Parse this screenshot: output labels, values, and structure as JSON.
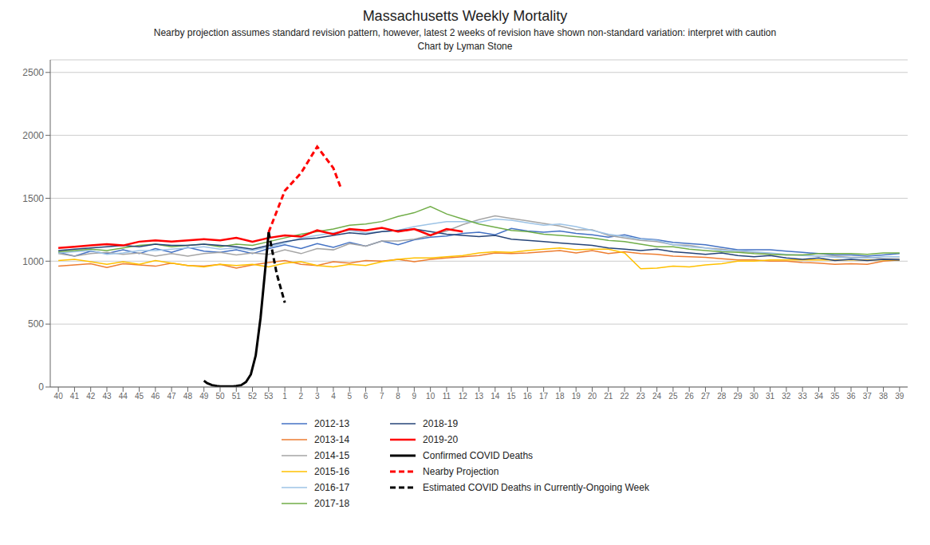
{
  "chart_data": {
    "type": "line",
    "title": "Massachusetts Weekly Mortality",
    "subtitle": [
      "Nearby projection assumes standard revision pattern, however, latest 2 weeks of revision have shown non-standard variation: interpret with caution",
      "Chart by Lyman Stone"
    ],
    "categories": [
      "40",
      "41",
      "42",
      "43",
      "44",
      "45",
      "46",
      "47",
      "48",
      "49",
      "50",
      "51",
      "52",
      "53",
      "1",
      "2",
      "3",
      "4",
      "5",
      "6",
      "7",
      "8",
      "9",
      "10",
      "11",
      "12",
      "13",
      "14",
      "15",
      "16",
      "17",
      "18",
      "19",
      "20",
      "21",
      "22",
      "23",
      "24",
      "25",
      "26",
      "27",
      "28",
      "29",
      "30",
      "31",
      "32",
      "33",
      "34",
      "35",
      "36",
      "37",
      "38",
      "39"
    ],
    "xlim": [
      -0.5,
      52.5
    ],
    "ylim": [
      0,
      2600
    ],
    "yticks": [
      0,
      500,
      1000,
      1500,
      2000,
      2500
    ],
    "grid": true,
    "legend": "bottom",
    "series": [
      {
        "name": "2012-13",
        "color": "#4472C4",
        "line_style": "solid",
        "values": [
          1070,
          1040,
          1080,
          1060,
          1090,
          1060,
          1100,
          1070,
          1110,
          1080,
          1070,
          1090,
          1060,
          1100,
          1130,
          1100,
          1140,
          1110,
          1150,
          1120,
          1160,
          1130,
          1170,
          1190,
          1200,
          1220,
          1230,
          1210,
          1260,
          1240,
          1230,
          1240,
          1220,
          1210,
          1190,
          1210,
          1180,
          1170,
          1150,
          1140,
          1130,
          1110,
          1090,
          1090,
          1090,
          1080,
          1070,
          1060,
          1050,
          1050,
          1040,
          1050,
          1060
        ]
      },
      {
        "name": "2013-14",
        "color": "#ED7D31",
        "line_style": "solid",
        "values": [
          960,
          970,
          980,
          950,
          980,
          970,
          960,
          985,
          965,
          960,
          975,
          945,
          970,
          990,
          1005,
          975,
          965,
          995,
          985,
          1005,
          1000,
          1015,
          995,
          1015,
          1025,
          1035,
          1045,
          1065,
          1060,
          1065,
          1075,
          1085,
          1065,
          1085,
          1060,
          1075,
          1060,
          1055,
          1040,
          1035,
          1030,
          1020,
          1010,
          1010,
          1000,
          1000,
          990,
          985,
          975,
          980,
          975,
          1000,
          1010
        ]
      },
      {
        "name": "2014-15",
        "color": "#A5A5A5",
        "line_style": "solid",
        "values": [
          1060,
          1040,
          1060,
          1070,
          1055,
          1065,
          1040,
          1060,
          1040,
          1060,
          1070,
          1050,
          1065,
          1055,
          1090,
          1060,
          1100,
          1090,
          1140,
          1120,
          1160,
          1160,
          1175,
          1205,
          1240,
          1290,
          1330,
          1360,
          1340,
          1320,
          1300,
          1280,
          1250,
          1250,
          1205,
          1185,
          1165,
          1155,
          1130,
          1125,
          1105,
          1095,
          1080,
          1070,
          1060,
          1050,
          1050,
          1040,
          1040,
          1030,
          1030,
          1020,
          1020
        ]
      },
      {
        "name": "2015-16",
        "color": "#FFC000",
        "line_style": "solid",
        "values": [
          1005,
          1015,
          995,
          975,
          995,
          975,
          1005,
          985,
          965,
          955,
          975,
          965,
          975,
          955,
          985,
          995,
          965,
          955,
          975,
          965,
          995,
          1015,
          1025,
          1025,
          1035,
          1045,
          1065,
          1075,
          1070,
          1085,
          1095,
          1105,
          1090,
          1095,
          1095,
          1065,
          940,
          945,
          960,
          955,
          970,
          980,
          1000,
          1000,
          1010,
          1010,
          1010,
          1010,
          1010,
          1010,
          1010,
          1010,
          1010
        ]
      },
      {
        "name": "2016-17",
        "color": "#9DC3E6",
        "line_style": "solid",
        "values": [
          1065,
          1075,
          1085,
          1055,
          1065,
          1085,
          1085,
          1095,
          1105,
          1115,
          1095,
          1105,
          1085,
          1115,
          1145,
          1185,
          1205,
          1225,
          1245,
          1225,
          1235,
          1245,
          1275,
          1295,
          1315,
          1315,
          1310,
          1335,
          1325,
          1305,
          1285,
          1295,
          1275,
          1245,
          1215,
          1195,
          1175,
          1165,
          1130,
          1115,
          1105,
          1085,
          1085,
          1075,
          1065,
          1055,
          1045,
          1040,
          1030,
          1025,
          1025,
          1035,
          1035
        ]
      },
      {
        "name": "2017-18",
        "color": "#70AD47",
        "line_style": "solid",
        "values": [
          1075,
          1085,
          1095,
          1085,
          1105,
          1125,
          1135,
          1115,
          1125,
          1135,
          1115,
          1135,
          1125,
          1155,
          1185,
          1215,
          1235,
          1255,
          1285,
          1295,
          1315,
          1355,
          1385,
          1435,
          1375,
          1335,
          1295,
          1270,
          1245,
          1235,
          1215,
          1205,
          1195,
          1185,
          1165,
          1155,
          1135,
          1115,
          1115,
          1095,
          1085,
          1075,
          1070,
          1060,
          1055,
          1050,
          1050,
          1060,
          1060,
          1060,
          1055,
          1065,
          1065
        ]
      },
      {
        "name": "2018-19",
        "color": "#264478",
        "line_style": "solid",
        "values": [
          1085,
          1095,
          1105,
          1115,
          1125,
          1115,
          1135,
          1125,
          1125,
          1135,
          1125,
          1115,
          1095,
          1125,
          1155,
          1175,
          1185,
          1205,
          1225,
          1215,
          1235,
          1245,
          1255,
          1235,
          1215,
          1205,
          1195,
          1205,
          1175,
          1165,
          1155,
          1145,
          1135,
          1125,
          1105,
          1095,
          1085,
          1095,
          1075,
          1065,
          1055,
          1065,
          1045,
          1035,
          1045,
          1025,
          1015,
          1025,
          1005,
          1015,
          1005,
          1015,
          1010
        ]
      },
      {
        "name": "2019-20",
        "color": "#FF0000",
        "line_style": "solid",
        "values": [
          1105,
          1115,
          1125,
          1135,
          1125,
          1155,
          1165,
          1155,
          1165,
          1175,
          1165,
          1185,
          1155,
          1185,
          1205,
          1195,
          1245,
          1215,
          1255,
          1245,
          1265,
          1235,
          1255,
          1205,
          1255,
          1235,
          null,
          null,
          null,
          null,
          null,
          null,
          null,
          null,
          null,
          null,
          null,
          null,
          null,
          null,
          null,
          null,
          null,
          null,
          null,
          null,
          null,
          null,
          null,
          null,
          null,
          null,
          null
        ]
      },
      {
        "name": "Confirmed COVID Deaths",
        "color": "#000000",
        "line_style": "solid",
        "x": [
          9,
          9.2,
          9.5,
          9.8,
          10.0,
          10.2,
          10.5,
          10.8,
          11.0,
          11.3,
          11.6,
          11.9,
          12.2,
          12.5,
          12.8,
          13.0
        ],
        "values": [
          50,
          30,
          15,
          8,
          5,
          4,
          4,
          5,
          8,
          15,
          40,
          100,
          250,
          550,
          950,
          1230
        ]
      },
      {
        "name": "Nearby Projection",
        "color": "#FF0000",
        "line_style": "dashed",
        "x": [
          13.0,
          14,
          15,
          16,
          17,
          17.5
        ],
        "values": [
          1230,
          1560,
          1700,
          1910,
          1740,
          1570
        ]
      },
      {
        "name": "Estimated COVID Deaths in Currently-Ongoing Week",
        "color": "#000000",
        "line_style": "dashed",
        "x": [
          13.0,
          13.5,
          14.0
        ],
        "values": [
          1230,
          900,
          670
        ]
      }
    ]
  }
}
